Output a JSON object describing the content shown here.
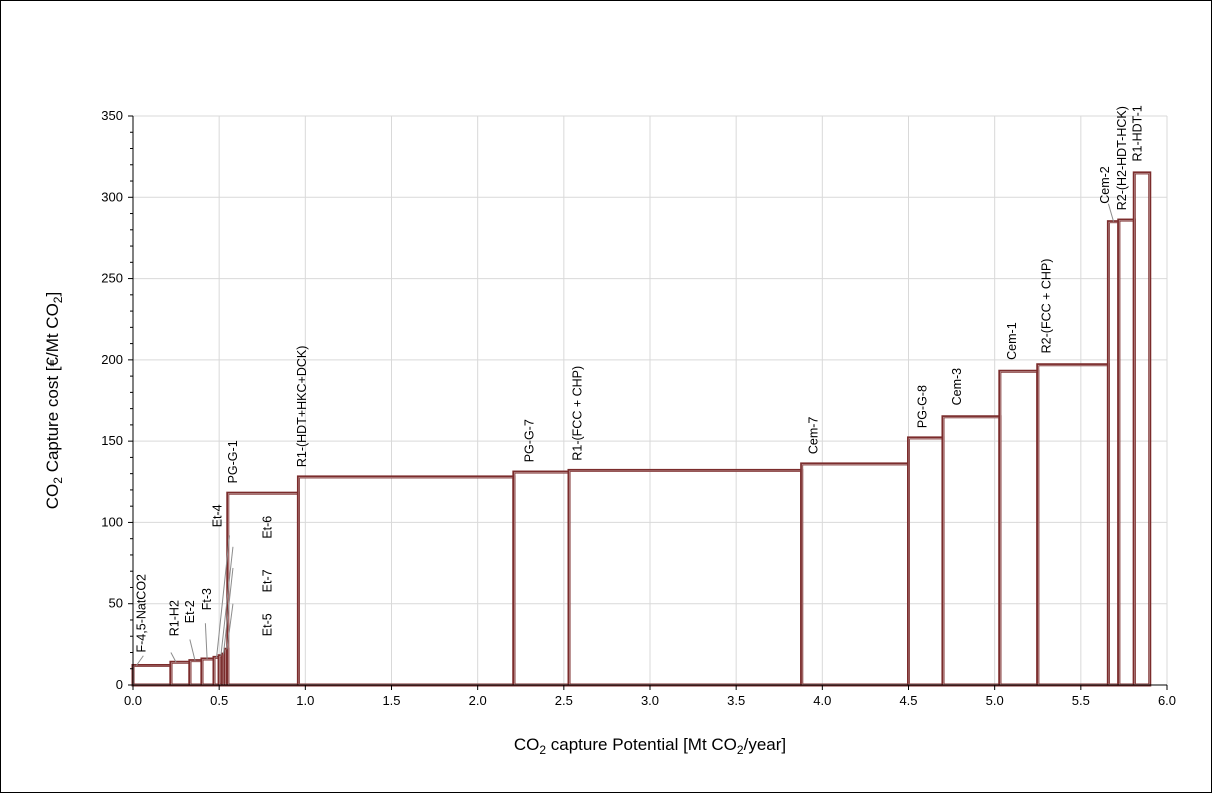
{
  "chart_data": {
    "type": "bar",
    "subtype": "marginal-abatement-cost-curve",
    "title": "",
    "xlabel": {
      "main": "CO",
      "sub": "2",
      "tail": " capture Potential [Mt CO",
      "sub2": "2",
      "tail2": "/year]"
    },
    "ylabel": {
      "main": "CO",
      "sub": "2",
      "tail": " Capture cost [€/Mt CO",
      "sub2": "2",
      "tail2": "]"
    },
    "xlim": [
      0,
      6
    ],
    "ylim": [
      0,
      350
    ],
    "xticks": [
      "0.0",
      "0.5",
      "1.0",
      "1.5",
      "2.0",
      "2.5",
      "3.0",
      "3.5",
      "4.0",
      "4.5",
      "5.0",
      "5.5",
      "6.0"
    ],
    "yticks": [
      "0",
      "50",
      "100",
      "150",
      "200",
      "250",
      "300",
      "350"
    ],
    "grid": true,
    "bar_color": "#7b2c2c",
    "bar_edge_color": "#c9a9a9",
    "bars": [
      {
        "label": "F-4,5-NatCO2",
        "x0": 0.0,
        "x1": 0.22,
        "cost": 12
      },
      {
        "label": "R1-H2",
        "x0": 0.22,
        "x1": 0.33,
        "cost": 14
      },
      {
        "label": "Et-2",
        "x0": 0.33,
        "x1": 0.4,
        "cost": 15
      },
      {
        "label": "Ft-3",
        "x0": 0.4,
        "x1": 0.47,
        "cost": 16
      },
      {
        "label": "Et-4",
        "x0": 0.47,
        "x1": 0.5,
        "cost": 17
      },
      {
        "label": "Et-6",
        "x0": 0.5,
        "x1": 0.52,
        "cost": 18
      },
      {
        "label": "Et-7",
        "x0": 0.52,
        "x1": 0.535,
        "cost": 19
      },
      {
        "label": "Et-5",
        "x0": 0.535,
        "x1": 0.55,
        "cost": 22
      },
      {
        "label": "PG-G-1",
        "x0": 0.55,
        "x1": 0.96,
        "cost": 118
      },
      {
        "label": "R1-(HDT+HKC+DCK)",
        "x0": 0.96,
        "x1": 2.21,
        "cost": 128
      },
      {
        "label": "PG-G-7",
        "x0": 2.21,
        "x1": 2.53,
        "cost": 131
      },
      {
        "label": "R1-(FCC + CHP)",
        "x0": 2.53,
        "x1": 3.88,
        "cost": 132
      },
      {
        "label": "Cem-7",
        "x0": 3.88,
        "x1": 4.5,
        "cost": 136
      },
      {
        "label": "PG-G-8",
        "x0": 4.5,
        "x1": 4.7,
        "cost": 152
      },
      {
        "label": "Cem-3",
        "x0": 4.7,
        "x1": 5.03,
        "cost": 165
      },
      {
        "label": "Cem-1",
        "x0": 5.03,
        "x1": 5.25,
        "cost": 193
      },
      {
        "label": "R2-(FCC + CHP)",
        "x0": 5.25,
        "x1": 5.66,
        "cost": 197
      },
      {
        "label": "Cem-2",
        "x0": 5.66,
        "x1": 5.72,
        "cost": 285
      },
      {
        "label": "R2-(H2-HDT-HCK)",
        "x0": 5.72,
        "x1": 5.81,
        "cost": 286
      },
      {
        "label": "R1-HDT-1",
        "x0": 5.81,
        "x1": 5.9,
        "cost": 315
      }
    ],
    "annotations": [
      {
        "label": "F-4,5-NatCO2",
        "lx": 0.05,
        "ly": 20,
        "leader": [
          [
            0.02,
            12
          ],
          [
            0.06,
            18
          ]
        ]
      },
      {
        "label": "R1-H2",
        "lx": 0.24,
        "ly": 30,
        "leader": [
          [
            0.25,
            14
          ],
          [
            0.22,
            20
          ]
        ]
      },
      {
        "label": "Et-2",
        "lx": 0.33,
        "ly": 38,
        "leader": [
          [
            0.36,
            15
          ],
          [
            0.33,
            28
          ]
        ]
      },
      {
        "label": "Ft-3",
        "lx": 0.43,
        "ly": 46,
        "leader": [
          [
            0.43,
            16
          ],
          [
            0.42,
            38
          ]
        ]
      },
      {
        "label": "Et-4",
        "lx": 0.49,
        "ly": 97,
        "leader": [
          [
            0.485,
            17
          ],
          [
            0.56,
            92
          ]
        ]
      },
      {
        "label": "Et-6",
        "lx": 0.78,
        "ly": 90,
        "leader": [
          [
            0.51,
            18
          ],
          [
            0.58,
            85
          ]
        ]
      },
      {
        "label": "Et-7",
        "lx": 0.78,
        "ly": 57,
        "leader": [
          [
            0.525,
            19
          ],
          [
            0.58,
            72
          ]
        ]
      },
      {
        "label": "Et-5",
        "lx": 0.78,
        "ly": 30,
        "leader": [
          [
            0.545,
            22
          ],
          [
            0.58,
            50
          ]
        ]
      },
      {
        "label": "PG-G-1",
        "lx": 0.58,
        "ly": 124
      },
      {
        "label": "R1-(HDT+HKC+DCK)",
        "lx": 0.98,
        "ly": 134
      },
      {
        "label": "PG-G-7",
        "lx": 2.3,
        "ly": 137
      },
      {
        "label": "R1-(FCC + CHP)",
        "lx": 2.58,
        "ly": 138
      },
      {
        "label": "Cem-7",
        "lx": 3.95,
        "ly": 142
      },
      {
        "label": "PG-G-8",
        "lx": 4.58,
        "ly": 158
      },
      {
        "label": "Cem-3",
        "lx": 4.78,
        "ly": 172
      },
      {
        "label": "Cem-1",
        "lx": 5.1,
        "ly": 200
      },
      {
        "label": "R2-(FCC + CHP)",
        "lx": 5.3,
        "ly": 204
      },
      {
        "label": "Cem-2",
        "lx": 5.64,
        "ly": 296,
        "leader": [
          [
            5.69,
            285
          ],
          [
            5.66,
            296
          ]
        ]
      },
      {
        "label": "R2-(H2-HDT-HCK)",
        "lx": 5.74,
        "ly": 292
      },
      {
        "label": "R1-HDT-1",
        "lx": 5.83,
        "ly": 322
      }
    ]
  }
}
